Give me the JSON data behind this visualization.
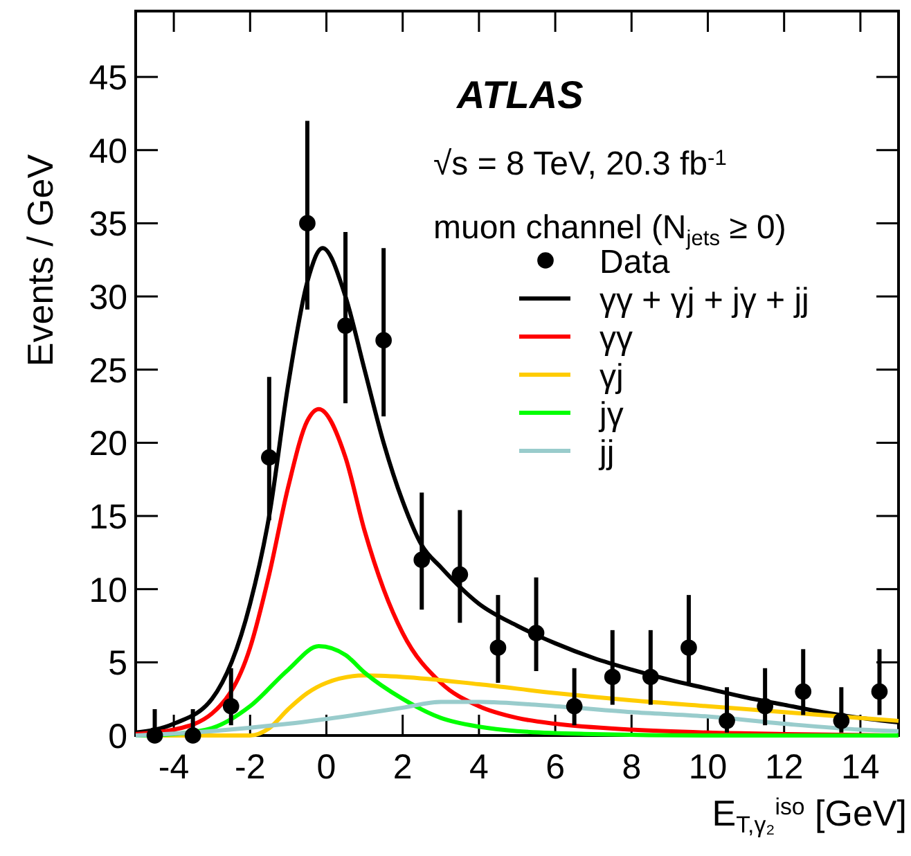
{
  "chart_data": {
    "type": "line",
    "xlabel": "E$_{T,γ₂}$$^{iso}$ [GeV]",
    "ylabel": "Events / GeV",
    "annotations": [
      "ATLAS",
      "√s = 8 TeV, 20.3 fb$^{-1}$",
      "muon channel (N$_{jets}$ ≥ 0)"
    ],
    "xlim": [
      -5,
      15
    ],
    "xticks": [
      -4,
      -2,
      0,
      2,
      4,
      6,
      8,
      10,
      12,
      14
    ],
    "ylim": [
      0,
      49.5
    ],
    "yticks": [
      0,
      5,
      10,
      15,
      20,
      25,
      30,
      35,
      40,
      45
    ],
    "grid": false,
    "legend": "top right",
    "series": [
      {
        "name": "Data",
        "type": "scatter",
        "marker": "circle",
        "color": "#000000",
        "x": [
          -4.5,
          -3.5,
          -2.5,
          -1.5,
          -0.5,
          0.5,
          1.5,
          2.5,
          3.5,
          4.5,
          5.5,
          6.5,
          7.5,
          8.5,
          9.5,
          10.5,
          11.5,
          12.5,
          13.5,
          14.5
        ],
        "values": [
          0,
          0,
          2,
          19,
          35,
          28,
          27,
          12,
          11,
          6,
          7,
          2,
          4,
          4,
          6,
          1,
          2,
          3,
          1,
          3
        ],
        "errors": [
          [
            0,
            1.8
          ],
          [
            0,
            1.8
          ],
          [
            0.7,
            4.6
          ],
          [
            14.7,
            24.5
          ],
          [
            29.1,
            42
          ],
          [
            22.7,
            34.4
          ],
          [
            21.8,
            33.3
          ],
          [
            8.6,
            16.6
          ],
          [
            7.7,
            15.4
          ],
          [
            3.6,
            9.6
          ],
          [
            4.4,
            10.8
          ],
          [
            0.7,
            4.6
          ],
          [
            2.1,
            7.2
          ],
          [
            2.1,
            7.2
          ],
          [
            3.6,
            9.6
          ],
          [
            0.2,
            3.3
          ],
          [
            0.7,
            4.6
          ],
          [
            1.4,
            5.9
          ],
          [
            0.2,
            3.3
          ],
          [
            1.4,
            5.9
          ]
        ]
      },
      {
        "name": "γγ + γj + jγ + jj",
        "color": "#000000",
        "x": [
          -5,
          -4,
          -3,
          -2,
          -1.5,
          -1,
          -0.5,
          -0.1,
          0.5,
          1,
          1.5,
          2,
          2.5,
          3,
          4,
          5,
          6,
          7,
          8,
          9,
          10,
          11,
          12,
          13,
          14,
          15
        ],
        "values": [
          0.2,
          0.8,
          2.5,
          9,
          15,
          24,
          31,
          33.3,
          30,
          25,
          20,
          16,
          13,
          11.5,
          9,
          7.5,
          6.3,
          5.3,
          4.5,
          3.8,
          3.2,
          2.6,
          2.1,
          1.6,
          1.2,
          0.9
        ]
      },
      {
        "name": "γγ",
        "color": "#ff0000",
        "x": [
          -5,
          -4,
          -3,
          -2,
          -1.5,
          -1,
          -0.5,
          -0.2,
          0.5,
          1,
          1.5,
          2,
          3,
          4,
          5,
          6,
          8,
          10,
          12,
          15
        ],
        "values": [
          0.1,
          0.4,
          1.5,
          6,
          11,
          17,
          21.5,
          22.3,
          19,
          14,
          10,
          7,
          3.6,
          2,
          1.2,
          0.8,
          0.4,
          0.2,
          0.1,
          0
        ]
      },
      {
        "name": "γj",
        "color": "#ffcc00",
        "x": [
          -5,
          -2,
          -1.5,
          -1,
          -0.5,
          0,
          1,
          2,
          4,
          6,
          8,
          10,
          12,
          14,
          15
        ],
        "values": [
          0,
          0,
          0.5,
          1.8,
          2.9,
          3.6,
          4.1,
          4,
          3.5,
          2.9,
          2.4,
          2,
          1.6,
          1.2,
          1
        ]
      },
      {
        "name": "jγ",
        "color": "#00ff00",
        "x": [
          -5,
          -4,
          -3,
          -2,
          -1,
          -0.2,
          0.5,
          1,
          2,
          3,
          4,
          5,
          7,
          10,
          15
        ],
        "values": [
          0,
          0.1,
          0.5,
          2,
          4.5,
          6.1,
          5.5,
          4.3,
          2.5,
          1.2,
          0.6,
          0.3,
          0.1,
          0,
          0
        ]
      },
      {
        "name": "jj",
        "color": "#99cccc",
        "x": [
          -5,
          -3,
          -1,
          1,
          2,
          3,
          4,
          6,
          8,
          10,
          12,
          14,
          15
        ],
        "values": [
          0,
          0.3,
          0.8,
          1.5,
          1.9,
          2.3,
          2.3,
          2,
          1.6,
          1.3,
          0.8,
          0.4,
          0.3
        ]
      }
    ]
  }
}
